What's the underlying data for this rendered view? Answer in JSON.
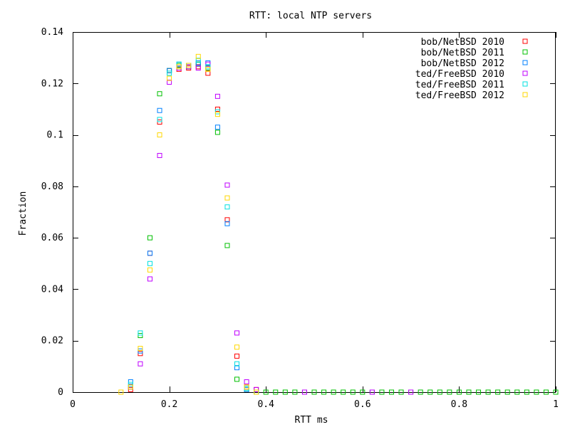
{
  "chart_data": {
    "type": "scatter",
    "title": "RTT: local NTP servers",
    "xlabel": "RTT ms",
    "ylabel": "Fraction",
    "xlim": [
      0,
      1
    ],
    "ylim": [
      0,
      0.14
    ],
    "xticks": [
      "0",
      "0.2",
      "0.4",
      "0.6",
      "0.8",
      "1"
    ],
    "yticks": [
      "0",
      "0.02",
      "0.04",
      "0.06",
      "0.08",
      "0.1",
      "0.12",
      "0.14"
    ],
    "grid": false,
    "legend_position": "top-right",
    "series": [
      {
        "name": "bob/NetBSD 2010",
        "color": "#ff0000",
        "points": [
          [
            0.12,
            0.001
          ],
          [
            0.14,
            0.015
          ],
          [
            0.16,
            0.054
          ],
          [
            0.18,
            0.105
          ],
          [
            0.2,
            0.125
          ],
          [
            0.22,
            0.1255
          ],
          [
            0.24,
            0.126
          ],
          [
            0.26,
            0.1265
          ],
          [
            0.28,
            0.124
          ],
          [
            0.3,
            0.11
          ],
          [
            0.32,
            0.067
          ],
          [
            0.34,
            0.014
          ],
          [
            0.36,
            0.002
          ],
          [
            0.38,
            0.001
          ]
        ]
      },
      {
        "name": "bob/NetBSD 2011",
        "color": "#00c000",
        "points": [
          [
            0.12,
            0.002
          ],
          [
            0.14,
            0.022
          ],
          [
            0.16,
            0.06
          ],
          [
            0.18,
            0.116
          ],
          [
            0.2,
            0.125
          ],
          [
            0.22,
            0.127
          ],
          [
            0.24,
            0.1265
          ],
          [
            0.26,
            0.1275
          ],
          [
            0.28,
            0.126
          ],
          [
            0.3,
            0.101
          ],
          [
            0.32,
            0.057
          ],
          [
            0.34,
            0.005
          ],
          [
            0.36,
            0.001
          ],
          [
            0.38,
            0.0
          ],
          [
            0.4,
            0.0
          ],
          [
            0.42,
            0.0
          ],
          [
            0.44,
            0.0
          ],
          [
            0.46,
            0.0
          ],
          [
            0.48,
            0.0
          ],
          [
            0.5,
            0.0
          ],
          [
            0.52,
            0.0
          ],
          [
            0.54,
            0.0
          ],
          [
            0.56,
            0.0
          ],
          [
            0.58,
            0.0
          ],
          [
            0.6,
            0.0
          ],
          [
            0.62,
            0.0
          ],
          [
            0.64,
            0.0
          ],
          [
            0.66,
            0.0
          ],
          [
            0.68,
            0.0
          ],
          [
            0.7,
            0.0
          ],
          [
            0.72,
            0.0
          ],
          [
            0.74,
            0.0
          ],
          [
            0.76,
            0.0
          ],
          [
            0.78,
            0.0
          ],
          [
            0.8,
            0.0
          ],
          [
            0.82,
            0.0
          ],
          [
            0.84,
            0.0
          ],
          [
            0.86,
            0.0
          ],
          [
            0.88,
            0.0
          ],
          [
            0.9,
            0.0
          ],
          [
            0.92,
            0.0
          ],
          [
            0.94,
            0.0
          ],
          [
            0.96,
            0.0
          ],
          [
            0.98,
            0.0
          ],
          [
            1.0,
            0.0
          ]
        ]
      },
      {
        "name": "bob/NetBSD 2012",
        "color": "#0080ff",
        "points": [
          [
            0.12,
            0.004
          ],
          [
            0.14,
            0.016
          ],
          [
            0.16,
            0.054
          ],
          [
            0.18,
            0.1095
          ],
          [
            0.2,
            0.125
          ],
          [
            0.22,
            0.1275
          ],
          [
            0.24,
            0.127
          ],
          [
            0.26,
            0.128
          ],
          [
            0.28,
            0.128
          ],
          [
            0.3,
            0.103
          ],
          [
            0.32,
            0.0655
          ],
          [
            0.34,
            0.0095
          ],
          [
            0.36,
            0.001
          ],
          [
            0.38,
            0.0
          ]
        ]
      },
      {
        "name": "ted/FreeBSD 2010",
        "color": "#c000ff",
        "points": [
          [
            0.12,
            0.002
          ],
          [
            0.14,
            0.011
          ],
          [
            0.16,
            0.044
          ],
          [
            0.18,
            0.092
          ],
          [
            0.2,
            0.1205
          ],
          [
            0.22,
            0.126
          ],
          [
            0.24,
            0.1265
          ],
          [
            0.26,
            0.126
          ],
          [
            0.28,
            0.1275
          ],
          [
            0.3,
            0.115
          ],
          [
            0.32,
            0.0805
          ],
          [
            0.34,
            0.023
          ],
          [
            0.36,
            0.004
          ],
          [
            0.38,
            0.001
          ],
          [
            0.48,
            0.0
          ],
          [
            0.62,
            0.0
          ],
          [
            0.7,
            0.0
          ]
        ]
      },
      {
        "name": "ted/FreeBSD 2011",
        "color": "#00e0e0",
        "points": [
          [
            0.12,
            0.003
          ],
          [
            0.14,
            0.023
          ],
          [
            0.16,
            0.05
          ],
          [
            0.18,
            0.106
          ],
          [
            0.2,
            0.124
          ],
          [
            0.22,
            0.1275
          ],
          [
            0.24,
            0.127
          ],
          [
            0.26,
            0.129
          ],
          [
            0.28,
            0.1265
          ],
          [
            0.3,
            0.109
          ],
          [
            0.32,
            0.072
          ],
          [
            0.34,
            0.011
          ],
          [
            0.36,
            0.0015
          ],
          [
            0.38,
            0.0
          ]
        ]
      },
      {
        "name": "ted/FreeBSD 2012",
        "color": "#ffd700",
        "points": [
          [
            0.1,
            0.0
          ],
          [
            0.12,
            0.002
          ],
          [
            0.14,
            0.017
          ],
          [
            0.16,
            0.0475
          ],
          [
            0.18,
            0.1
          ],
          [
            0.2,
            0.122
          ],
          [
            0.22,
            0.1265
          ],
          [
            0.24,
            0.127
          ],
          [
            0.26,
            0.1305
          ],
          [
            0.28,
            0.1255
          ],
          [
            0.3,
            0.108
          ],
          [
            0.32,
            0.0755
          ],
          [
            0.34,
            0.0175
          ],
          [
            0.36,
            0.002
          ],
          [
            0.38,
            0.0
          ]
        ]
      }
    ]
  }
}
